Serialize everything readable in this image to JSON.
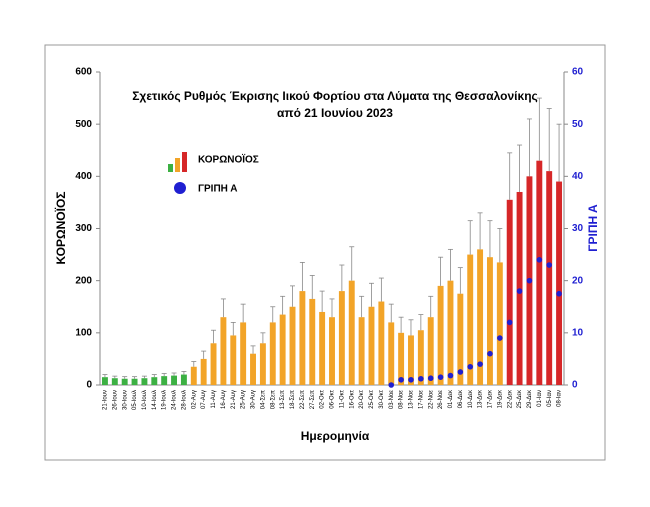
{
  "chart_data": {
    "type": "bar",
    "title": "Σχετικός Ρυθμός Έκρισης Ιικού Φορτίου στα Λύματα της Θεσσαλονίκης",
    "subtitle": "από 21 Ιουνίου 2023",
    "x_label": "Ημερομηνία",
    "y_label": "ΚΟΡΩΝΟΪΟΣ",
    "y2_label": "ΓΡΙΠΗ Α",
    "categories": [
      "21-Ιουν",
      "26-Ιουν",
      "30-Ιουν",
      "05-Ιουλ",
      "10-Ιουλ",
      "14-Ιουλ",
      "19-Ιουλ",
      "24-Ιουλ",
      "28-Ιουλ",
      "02-Αυγ",
      "07-Αυγ",
      "11-Αυγ",
      "16-Αυγ",
      "21-Αυγ",
      "25-Αυγ",
      "30-Αυγ",
      "04-Σεπ",
      "08-Σεπ",
      "13-Σεπ",
      "18-Σεπ",
      "22-Σεπ",
      "27-Σεπ",
      "02-Οκτ",
      "06-Οκτ",
      "11-Οκτ",
      "16-Οκτ",
      "20-Οκτ",
      "25-Οκτ",
      "30-Οκτ",
      "03-Νοε",
      "08-Νοε",
      "13-Νοε",
      "17-Νοε",
      "22-Νοε",
      "26-Νοε",
      "01-Δεκ",
      "06-Δεκ",
      "10-Δεκ",
      "13-Δεκ",
      "17-Δεκ",
      "19-Δεκ",
      "22-Δεκ",
      "25-Δεκ",
      "29-Δεκ",
      "01-Ιαν",
      "05-Ιαν",
      "08-Ιαν"
    ],
    "series": [
      {
        "name": "ΚΟΡΩΝΟΪΟΣ",
        "values": [
          15,
          13,
          12,
          12,
          13,
          15,
          17,
          18,
          20,
          35,
          50,
          80,
          130,
          95,
          120,
          60,
          80,
          120,
          135,
          150,
          180,
          165,
          140,
          130,
          180,
          200,
          130,
          150,
          160,
          120,
          100,
          95,
          105,
          130,
          190,
          200,
          175,
          250,
          260,
          245,
          235,
          355,
          370,
          400,
          430,
          410,
          390
        ],
        "errors": [
          5,
          4,
          4,
          4,
          4,
          5,
          5,
          5,
          6,
          10,
          15,
          25,
          35,
          25,
          35,
          15,
          20,
          30,
          35,
          40,
          55,
          45,
          40,
          35,
          50,
          65,
          40,
          45,
          45,
          35,
          30,
          30,
          30,
          40,
          55,
          60,
          50,
          65,
          70,
          70,
          65,
          90,
          90,
          110,
          120,
          120,
          110
        ],
        "colors": [
          "#3cb043",
          "#3cb043",
          "#3cb043",
          "#3cb043",
          "#3cb043",
          "#3cb043",
          "#3cb043",
          "#3cb043",
          "#3cb043",
          "#f2a428",
          "#f2a428",
          "#f2a428",
          "#f2a428",
          "#f2a428",
          "#f2a428",
          "#f2a428",
          "#f2a428",
          "#f2a428",
          "#f2a428",
          "#f2a428",
          "#f2a428",
          "#f2a428",
          "#f2a428",
          "#f2a428",
          "#f2a428",
          "#f2a428",
          "#f2a428",
          "#f2a428",
          "#f2a428",
          "#f2a428",
          "#f2a428",
          "#f2a428",
          "#f2a428",
          "#f2a428",
          "#f2a428",
          "#f2a428",
          "#f2a428",
          "#f2a428",
          "#f2a428",
          "#f2a428",
          "#f2a428",
          "#d62728",
          "#d62728",
          "#d62728",
          "#d62728",
          "#d62728",
          "#d62728"
        ]
      },
      {
        "name": "ΓΡΙΠΗ Α",
        "type": "scatter",
        "axis": "y2",
        "color": "#1f1fd1",
        "values": [
          null,
          null,
          null,
          null,
          null,
          null,
          null,
          null,
          null,
          null,
          null,
          null,
          null,
          null,
          null,
          null,
          null,
          null,
          null,
          null,
          null,
          null,
          null,
          null,
          null,
          null,
          null,
          null,
          null,
          0,
          1,
          1,
          1.2,
          1.3,
          1.5,
          1.8,
          2.5,
          3.5,
          4,
          6,
          9,
          12,
          18,
          20,
          24,
          23,
          17.5
        ]
      }
    ],
    "ylim": [
      0,
      600
    ],
    "yticks": [
      0,
      100,
      200,
      300,
      400,
      500,
      600
    ],
    "y2lim": [
      0,
      60
    ],
    "y2ticks": [
      0,
      10,
      20,
      30,
      40,
      50,
      60
    ]
  }
}
